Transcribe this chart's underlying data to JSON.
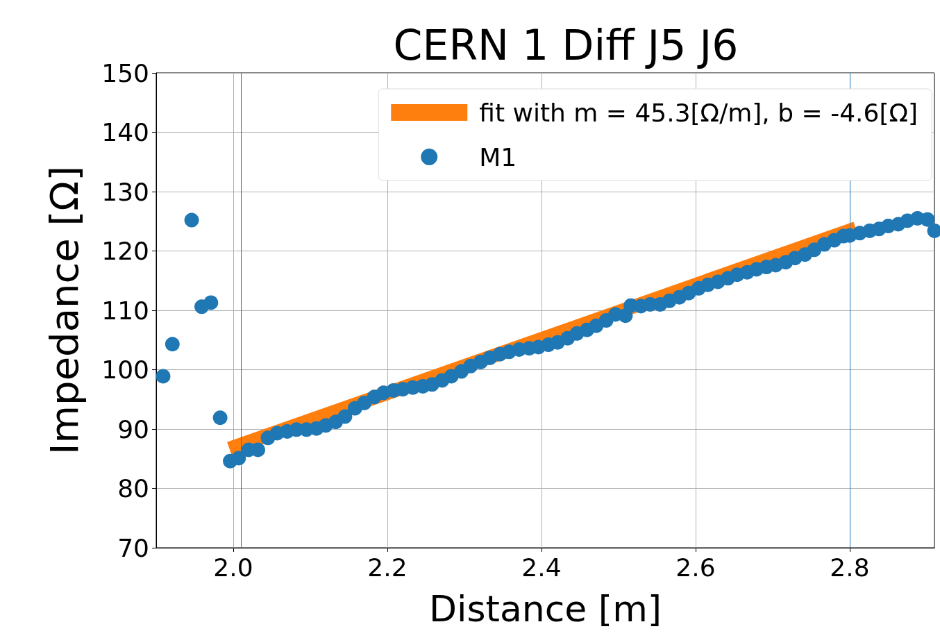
{
  "chart_data": {
    "type": "scatter",
    "title": "CERN 1 Diff J5 J6",
    "xlabel": "Distance [m]",
    "ylabel": "Impedance [Ω]",
    "xlim": [
      1.9,
      2.91
    ],
    "xticks": [
      {
        "value": 2,
        "label": "2.0"
      },
      {
        "value": 2.2,
        "label": "2.2"
      },
      {
        "value": 2.4,
        "label": "2.4"
      },
      {
        "value": 2.6,
        "label": "2.6"
      },
      {
        "value": 2.8,
        "label": "2.8"
      }
    ],
    "ylim": [
      70,
      150
    ],
    "yticks": [
      70,
      80,
      90,
      100,
      110,
      120,
      130,
      140,
      150
    ],
    "grid": true,
    "legend": "top right",
    "ref_lines": [
      {
        "axis": "x",
        "value": 2.006,
        "color": "#1f77b4"
      },
      {
        "axis": "x",
        "value": 2.801,
        "color": "#1f77b4"
      }
    ],
    "series": [
      {
        "name": "fit with m = 45.3[Ω/m], b = -4.6[Ω]",
        "type": "line",
        "color": "#ff7f0e",
        "x": [
          1.995,
          2.808
        ],
        "values": [
          86.7,
          123.8
        ]
      },
      {
        "name": "M1",
        "marker": "circle",
        "color": "#1f77b4",
        "x": [
          1.909,
          1.921,
          1.946,
          1.959,
          1.971,
          1.983,
          1.996,
          2.007,
          2.02,
          2.032,
          2.045,
          2.057,
          2.07,
          2.082,
          2.095,
          2.108,
          2.12,
          2.133,
          2.145,
          2.158,
          2.17,
          2.183,
          2.195,
          2.208,
          2.22,
          2.233,
          2.246,
          2.258,
          2.271,
          2.283,
          2.296,
          2.308,
          2.321,
          2.333,
          2.346,
          2.358,
          2.371,
          2.384,
          2.396,
          2.409,
          2.421,
          2.434,
          2.446,
          2.459,
          2.471,
          2.484,
          2.496,
          2.509,
          2.516,
          2.529,
          2.541,
          2.554,
          2.566,
          2.579,
          2.591,
          2.604,
          2.616,
          2.629,
          2.642,
          2.654,
          2.667,
          2.679,
          2.692,
          2.704,
          2.717,
          2.729,
          2.742,
          2.754,
          2.767,
          2.78,
          2.792,
          2.8,
          2.813,
          2.826,
          2.838,
          2.85,
          2.863,
          2.875,
          2.888,
          2.901,
          2.91
        ],
        "values": [
          98.9,
          104.3,
          125.2,
          110.6,
          111.3,
          91.9,
          84.6,
          85.1,
          86.5,
          86.5,
          88.5,
          89.3,
          89.6,
          89.9,
          89.9,
          90.1,
          90.6,
          91.2,
          92.1,
          93.5,
          94.4,
          95.4,
          96.1,
          96.5,
          96.7,
          97.0,
          97.2,
          97.5,
          98.2,
          98.9,
          99.7,
          100.6,
          101.3,
          102.0,
          102.6,
          103.0,
          103.4,
          103.6,
          103.8,
          104.2,
          104.6,
          105.3,
          106.1,
          106.7,
          107.4,
          108.3,
          109.3,
          109.1,
          110.8,
          110.7,
          111.0,
          111.0,
          111.6,
          112.2,
          112.9,
          113.7,
          114.3,
          114.8,
          115.4,
          116.0,
          116.4,
          116.9,
          117.3,
          117.6,
          118.1,
          118.8,
          119.4,
          120.2,
          121.1,
          121.8,
          122.5,
          122.6,
          123.0,
          123.4,
          123.7,
          124.2,
          124.5,
          125.1,
          125.5,
          125.3,
          123.4
        ]
      }
    ]
  }
}
